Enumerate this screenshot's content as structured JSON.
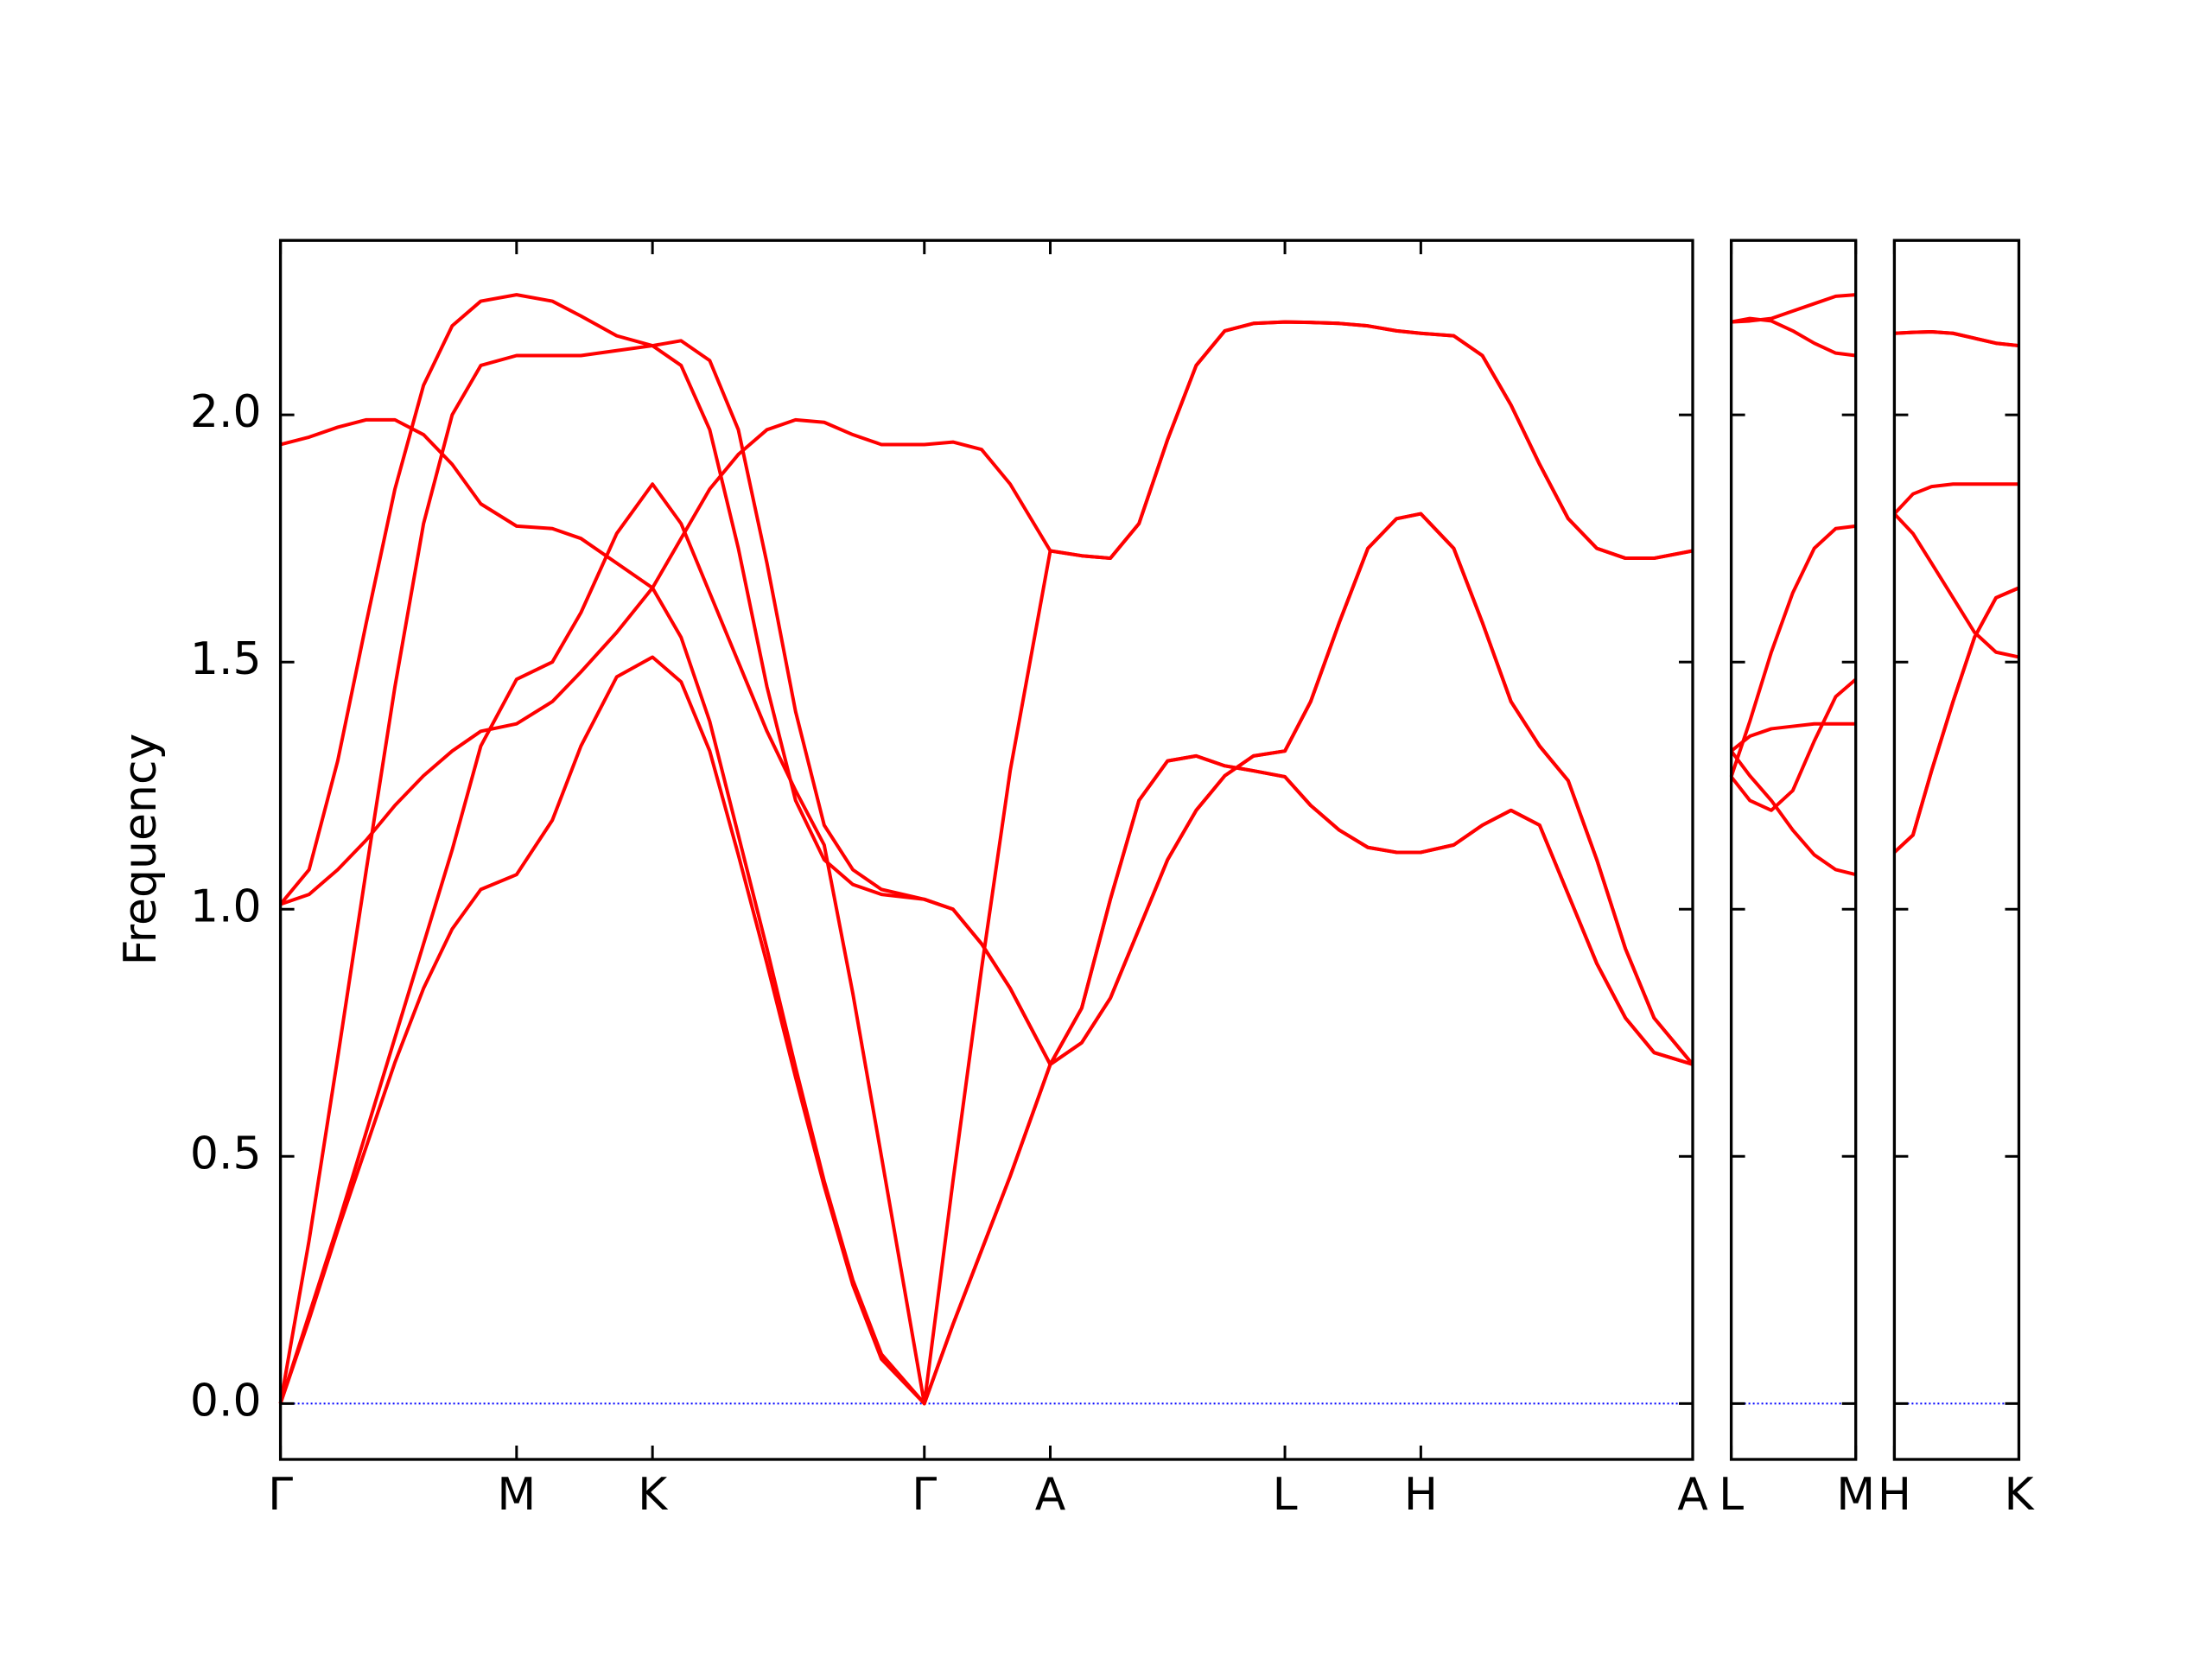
{
  "chart_data": [
    {
      "type": "line",
      "ylabel": "Frequency",
      "color": "#ff0000",
      "xlim": [
        0,
        9.87
      ],
      "ylim": [
        -0.113,
        2.353
      ],
      "xticks": [
        {
          "value": 0,
          "label": "Γ"
        },
        {
          "value": 1.65,
          "label": "M"
        },
        {
          "value": 2.6,
          "label": "K"
        },
        {
          "value": 4.5,
          "label": "Γ"
        },
        {
          "value": 5.38,
          "label": "A"
        },
        {
          "value": 7.02,
          "label": "L"
        },
        {
          "value": 7.97,
          "label": "H"
        },
        {
          "value": 9.87,
          "label": "A"
        }
      ],
      "yticks": [
        {
          "value": 0,
          "label": "0.0"
        },
        0.5,
        {
          "value": 1,
          "label": "1.0"
        },
        1.5,
        {
          "value": 2,
          "label": "2.0"
        }
      ],
      "hlines": [
        {
          "value": 0,
          "color": "#0000ff"
        }
      ],
      "x": [
        0,
        0.2,
        0.4,
        0.6,
        0.8,
        1.0,
        1.2,
        1.4,
        1.65,
        1.9,
        2.1,
        2.35,
        2.6,
        2.8,
        3.0,
        3.2,
        3.4,
        3.6,
        3.8,
        4.0,
        4.2,
        4.5,
        4.7,
        4.9,
        5.1,
        5.38,
        5.6,
        5.8,
        6.0,
        6.2,
        6.4,
        6.6,
        6.8,
        7.02,
        7.2,
        7.4,
        7.6,
        7.8,
        7.97,
        8.2,
        8.4,
        8.6,
        8.8,
        9.0,
        9.2,
        9.4,
        9.6,
        9.87
      ],
      "series": [
        {
          "values": [
            1.94,
            1.955,
            1.975,
            1.99,
            1.99,
            1.96,
            1.9,
            1.82,
            1.775,
            1.77,
            1.75,
            1.7,
            1.65,
            1.55,
            1.38,
            1.15,
            0.92,
            0.68,
            0.45,
            0.25,
            0.1,
            0,
            0.16,
            0.31,
            0.46,
            0.686,
            0.73,
            0.82,
            0.96,
            1.1,
            1.2,
            1.27,
            1.31,
            1.32,
            1.42,
            1.58,
            1.73,
            1.79,
            1.8,
            1.73,
            1.58,
            1.42,
            1.33,
            1.26,
            1.1,
            0.92,
            0.78,
            0.686
          ]
        },
        {
          "values": [
            1.01,
            1.08,
            1.3,
            1.58,
            1.85,
            2.06,
            2.18,
            2.23,
            2.243,
            2.23,
            2.2,
            2.16,
            2.14,
            2.15,
            2.11,
            1.97,
            1.7,
            1.4,
            1.17,
            1.08,
            1.04,
            1.02,
            1.0,
            0.93,
            0.84,
            0.686,
            0.8,
            1.02,
            1.22,
            1.3,
            1.31,
            1.29,
            1.28,
            1.268,
            1.21,
            1.16,
            1.125,
            1.115,
            1.115,
            1.13,
            1.17,
            1.2,
            1.17,
            1.03,
            0.89,
            0.78,
            0.71,
            0.686
          ]
        },
        {
          "values": [
            1.01,
            1.03,
            1.08,
            1.14,
            1.21,
            1.27,
            1.32,
            1.36,
            1.375,
            1.42,
            1.48,
            1.56,
            1.65,
            1.75,
            1.85,
            1.92,
            1.97,
            1.99,
            1.985,
            1.96,
            1.94,
            1.94,
            1.945,
            1.93,
            1.86,
            1.725,
            1.715,
            1.71,
            1.78,
            1.95,
            2.1,
            2.17,
            2.185,
            2.188,
            2.187,
            2.185,
            2.18,
            2.17,
            2.165,
            2.16,
            2.12,
            2.02,
            1.9,
            1.79,
            1.73,
            1.71,
            1.71,
            1.725
          ]
        },
        {
          "values": [
            0,
            0.33,
            0.7,
            1.08,
            1.45,
            1.78,
            2.0,
            2.1,
            2.12,
            2.12,
            2.12,
            2.13,
            2.14,
            2.1,
            1.97,
            1.73,
            1.45,
            1.22,
            1.1,
            1.05,
            1.03,
            1.02,
            1.0,
            0.93,
            0.84,
            0.686,
            0.8,
            1.02,
            1.22,
            1.3,
            1.31,
            1.29,
            1.28,
            1.268,
            1.21,
            1.16,
            1.125,
            1.115,
            1.115,
            1.13,
            1.17,
            1.2,
            1.17,
            1.03,
            0.89,
            0.78,
            0.71,
            0.686
          ]
        },
        {
          "values": [
            0,
            0.18,
            0.36,
            0.55,
            0.74,
            0.93,
            1.12,
            1.33,
            1.465,
            1.5,
            1.6,
            1.76,
            1.86,
            1.78,
            1.64,
            1.5,
            1.36,
            1.24,
            1.13,
            0.83,
            0.5,
            0,
            0.45,
            0.88,
            1.28,
            1.725,
            1.715,
            1.71,
            1.78,
            1.95,
            2.1,
            2.17,
            2.185,
            2.188,
            2.187,
            2.185,
            2.18,
            2.17,
            2.165,
            2.16,
            2.12,
            2.02,
            1.9,
            1.79,
            1.73,
            1.71,
            1.71,
            1.725
          ]
        },
        {
          "values": [
            0,
            0.17,
            0.35,
            0.52,
            0.69,
            0.84,
            0.96,
            1.04,
            1.07,
            1.18,
            1.33,
            1.47,
            1.51,
            1.46,
            1.32,
            1.11,
            0.89,
            0.66,
            0.44,
            0.24,
            0.09,
            0,
            0.16,
            0.31,
            0.46,
            0.686,
            0.73,
            0.82,
            0.96,
            1.1,
            1.2,
            1.27,
            1.31,
            1.32,
            1.42,
            1.58,
            1.73,
            1.79,
            1.8,
            1.73,
            1.58,
            1.42,
            1.33,
            1.26,
            1.1,
            0.92,
            0.78,
            0.686
          ]
        }
      ]
    },
    {
      "type": "line",
      "color": "#ff0000",
      "xlim": [
        9.87,
        10.74
      ],
      "ylim": [
        -0.113,
        2.353
      ],
      "xticks": [
        {
          "value": 9.87,
          "label": "L"
        },
        {
          "value": 10.74,
          "label": "M"
        }
      ],
      "hlines": [
        {
          "value": 0,
          "color": "#0000ff"
        }
      ],
      "x": [
        9.87,
        10.0,
        10.15,
        10.3,
        10.45,
        10.6,
        10.74
      ],
      "series": [
        {
          "values": [
            2.188,
            2.19,
            2.195,
            2.21,
            2.225,
            2.24,
            2.243
          ]
        },
        {
          "values": [
            2.188,
            2.195,
            2.19,
            2.17,
            2.145,
            2.125,
            2.12
          ]
        },
        {
          "values": [
            1.268,
            1.38,
            1.52,
            1.64,
            1.73,
            1.77,
            1.775
          ]
        },
        {
          "values": [
            1.32,
            1.35,
            1.365,
            1.37,
            1.375,
            1.375,
            1.375
          ]
        },
        {
          "values": [
            1.268,
            1.22,
            1.2,
            1.24,
            1.34,
            1.43,
            1.465
          ]
        },
        {
          "values": [
            1.32,
            1.27,
            1.22,
            1.16,
            1.11,
            1.08,
            1.07
          ]
        }
      ]
    },
    {
      "type": "line",
      "color": "#ff0000",
      "xlim": [
        10.74,
        11.61
      ],
      "ylim": [
        -0.113,
        2.353
      ],
      "xticks": [
        {
          "value": 10.74,
          "label": "H"
        },
        {
          "value": 11.61,
          "label": "K"
        }
      ],
      "hlines": [
        {
          "value": 0,
          "color": "#0000ff"
        }
      ],
      "x": [
        10.74,
        10.87,
        11.0,
        11.15,
        11.3,
        11.45,
        11.61
      ],
      "series": [
        {
          "values": [
            2.165,
            2.167,
            2.168,
            2.165,
            2.155,
            2.145,
            2.14
          ]
        },
        {
          "values": [
            2.165,
            2.167,
            2.168,
            2.165,
            2.155,
            2.145,
            2.14
          ]
        },
        {
          "values": [
            1.8,
            1.84,
            1.855,
            1.86,
            1.86,
            1.86,
            1.86
          ]
        },
        {
          "values": [
            1.8,
            1.76,
            1.7,
            1.63,
            1.56,
            1.52,
            1.51
          ]
        },
        {
          "values": [
            1.115,
            1.15,
            1.28,
            1.42,
            1.55,
            1.63,
            1.65
          ]
        },
        {
          "values": [
            1.115,
            1.15,
            1.28,
            1.42,
            1.55,
            1.63,
            1.65
          ]
        }
      ]
    }
  ]
}
